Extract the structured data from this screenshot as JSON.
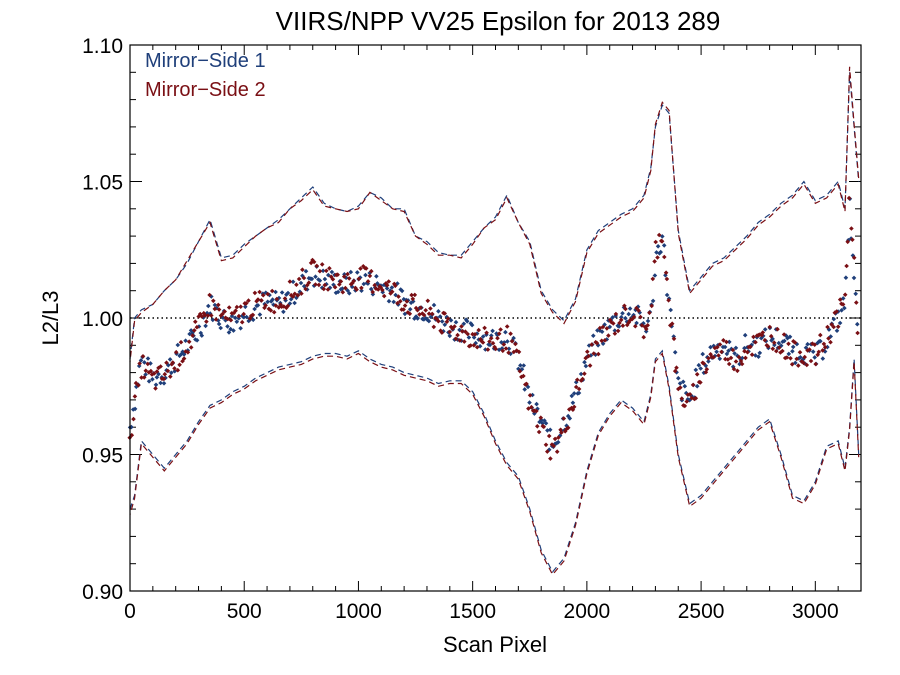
{
  "chart_data": {
    "type": "scatter",
    "title": "VIIRS/NPP VV25 Epsilon for 2013 289",
    "xlabel": "Scan Pixel",
    "ylabel": "L2/L3",
    "xlim": [
      0,
      3200
    ],
    "ylim": [
      0.9,
      1.1
    ],
    "x_ticks": [
      "0",
      "500",
      "1000",
      "1500",
      "2000",
      "2500",
      "3000"
    ],
    "y_ticks": [
      "0.90",
      "0.95",
      "1.00",
      "1.05",
      "1.10"
    ],
    "x_tick_values": [
      0,
      500,
      1000,
      1500,
      2000,
      2500,
      3000
    ],
    "y_tick_values": [
      0.9,
      0.95,
      1.0,
      1.05,
      1.1
    ],
    "reference_line": 1.0,
    "legend_position": "top-left",
    "colors": {
      "side1": "#1f3f7a",
      "side2": "#7a0f14"
    },
    "series": [
      {
        "name": "Mirror−Side 1",
        "color": "#1f3f7a",
        "x": [
          0,
          20,
          50,
          100,
          150,
          200,
          250,
          300,
          350,
          400,
          450,
          500,
          550,
          600,
          650,
          700,
          750,
          800,
          850,
          900,
          950,
          1000,
          1050,
          1100,
          1150,
          1200,
          1250,
          1300,
          1350,
          1400,
          1450,
          1500,
          1550,
          1600,
          1650,
          1700,
          1750,
          1800,
          1850,
          1900,
          1950,
          2000,
          2050,
          2100,
          2150,
          2200,
          2250,
          2280,
          2300,
          2330,
          2360,
          2400,
          2450,
          2500,
          2550,
          2600,
          2650,
          2700,
          2750,
          2800,
          2850,
          2900,
          2950,
          3000,
          3050,
          3100,
          3130,
          3150,
          3170,
          3190
        ],
        "mean": [
          0.96,
          0.97,
          0.985,
          0.978,
          0.98,
          0.985,
          0.99,
          0.995,
          1.005,
          1.0,
          0.998,
          1.002,
          1.004,
          1.006,
          1.005,
          1.008,
          1.012,
          1.016,
          1.014,
          1.013,
          1.012,
          1.014,
          1.013,
          1.012,
          1.01,
          1.006,
          1.004,
          1.003,
          1.0,
          0.997,
          0.996,
          0.994,
          0.993,
          0.992,
          0.994,
          0.985,
          0.97,
          0.962,
          0.953,
          0.962,
          0.972,
          0.985,
          0.992,
          0.997,
          1.001,
          1.003,
          0.997,
          1.0,
          1.022,
          1.03,
          1.005,
          0.975,
          0.97,
          0.982,
          0.988,
          0.99,
          0.985,
          0.99,
          0.99,
          0.993,
          0.992,
          0.988,
          0.988,
          0.985,
          0.992,
          1.0,
          1.005,
          1.04,
          1.02,
          0.985
        ],
        "upper": [
          0.985,
          1.0,
          1.003,
          1.005,
          1.01,
          1.014,
          1.02,
          1.028,
          1.036,
          1.022,
          1.023,
          1.027,
          1.03,
          1.033,
          1.036,
          1.04,
          1.044,
          1.048,
          1.042,
          1.04,
          1.039,
          1.041,
          1.046,
          1.044,
          1.04,
          1.04,
          1.03,
          1.028,
          1.024,
          1.023,
          1.023,
          1.028,
          1.033,
          1.037,
          1.045,
          1.035,
          1.028,
          1.01,
          1.003,
          0.999,
          1.007,
          1.025,
          1.032,
          1.035,
          1.038,
          1.04,
          1.045,
          1.055,
          1.07,
          1.078,
          1.075,
          1.032,
          1.01,
          1.015,
          1.02,
          1.022,
          1.026,
          1.03,
          1.035,
          1.038,
          1.042,
          1.045,
          1.05,
          1.043,
          1.045,
          1.05,
          1.04,
          1.09,
          1.07,
          1.05
        ],
        "lower": [
          0.93,
          0.935,
          0.955,
          0.95,
          0.945,
          0.95,
          0.955,
          0.962,
          0.968,
          0.97,
          0.973,
          0.975,
          0.978,
          0.98,
          0.982,
          0.983,
          0.984,
          0.986,
          0.987,
          0.987,
          0.986,
          0.988,
          0.985,
          0.983,
          0.982,
          0.98,
          0.979,
          0.978,
          0.976,
          0.977,
          0.977,
          0.973,
          0.965,
          0.955,
          0.947,
          0.942,
          0.93,
          0.915,
          0.907,
          0.912,
          0.925,
          0.944,
          0.958,
          0.965,
          0.97,
          0.967,
          0.962,
          0.972,
          0.985,
          0.988,
          0.975,
          0.95,
          0.932,
          0.935,
          0.94,
          0.945,
          0.95,
          0.955,
          0.96,
          0.963,
          0.95,
          0.935,
          0.933,
          0.94,
          0.953,
          0.955,
          0.945,
          0.96,
          0.985,
          0.95
        ]
      },
      {
        "name": "Mirror−Side 2",
        "color": "#7a0f14",
        "x": [
          0,
          20,
          50,
          100,
          150,
          200,
          250,
          300,
          350,
          400,
          450,
          500,
          550,
          600,
          650,
          700,
          750,
          800,
          850,
          900,
          950,
          1000,
          1050,
          1100,
          1150,
          1200,
          1250,
          1300,
          1350,
          1400,
          1450,
          1500,
          1550,
          1600,
          1650,
          1700,
          1750,
          1800,
          1850,
          1900,
          1950,
          2000,
          2050,
          2100,
          2150,
          2200,
          2250,
          2280,
          2300,
          2330,
          2360,
          2400,
          2450,
          2500,
          2550,
          2600,
          2650,
          2700,
          2750,
          2800,
          2850,
          2900,
          2950,
          3000,
          3050,
          3100,
          3130,
          3150,
          3170,
          3190
        ],
        "mean": [
          0.958,
          0.968,
          0.983,
          0.977,
          0.979,
          0.984,
          0.99,
          0.996,
          1.005,
          1.001,
          0.999,
          1.003,
          1.005,
          1.007,
          1.006,
          1.009,
          1.013,
          1.017,
          1.015,
          1.014,
          1.013,
          1.015,
          1.014,
          1.012,
          1.01,
          1.006,
          1.004,
          1.002,
          0.999,
          0.996,
          0.995,
          0.993,
          0.992,
          0.991,
          0.993,
          0.984,
          0.968,
          0.96,
          0.951,
          0.96,
          0.971,
          0.984,
          0.991,
          0.996,
          1.0,
          1.002,
          0.996,
          1.001,
          1.024,
          1.032,
          1.006,
          0.973,
          0.968,
          0.98,
          0.987,
          0.989,
          0.984,
          0.989,
          0.991,
          0.994,
          0.991,
          0.987,
          0.987,
          0.986,
          0.993,
          1.001,
          1.006,
          1.043,
          1.022,
          0.983
        ],
        "upper": [
          0.984,
          0.999,
          1.002,
          1.005,
          1.01,
          1.014,
          1.021,
          1.028,
          1.035,
          1.021,
          1.022,
          1.026,
          1.03,
          1.033,
          1.035,
          1.04,
          1.043,
          1.047,
          1.041,
          1.04,
          1.039,
          1.04,
          1.046,
          1.043,
          1.04,
          1.039,
          1.03,
          1.027,
          1.023,
          1.023,
          1.022,
          1.027,
          1.033,
          1.036,
          1.044,
          1.035,
          1.027,
          1.009,
          1.002,
          0.998,
          1.006,
          1.024,
          1.031,
          1.034,
          1.037,
          1.039,
          1.044,
          1.054,
          1.071,
          1.079,
          1.076,
          1.031,
          1.009,
          1.014,
          1.019,
          1.021,
          1.025,
          1.029,
          1.034,
          1.037,
          1.041,
          1.044,
          1.049,
          1.042,
          1.044,
          1.049,
          1.039,
          1.092,
          1.071,
          1.051
        ],
        "lower": [
          0.928,
          0.934,
          0.954,
          0.949,
          0.944,
          0.949,
          0.954,
          0.961,
          0.967,
          0.969,
          0.972,
          0.974,
          0.977,
          0.979,
          0.981,
          0.982,
          0.983,
          0.985,
          0.986,
          0.986,
          0.985,
          0.987,
          0.984,
          0.982,
          0.981,
          0.979,
          0.978,
          0.977,
          0.975,
          0.976,
          0.976,
          0.972,
          0.964,
          0.954,
          0.946,
          0.941,
          0.929,
          0.914,
          0.906,
          0.911,
          0.924,
          0.943,
          0.957,
          0.964,
          0.969,
          0.966,
          0.961,
          0.971,
          0.984,
          0.987,
          0.974,
          0.949,
          0.931,
          0.934,
          0.939,
          0.944,
          0.949,
          0.954,
          0.959,
          0.962,
          0.949,
          0.934,
          0.932,
          0.939,
          0.952,
          0.954,
          0.944,
          0.959,
          0.984,
          0.949
        ]
      }
    ]
  }
}
